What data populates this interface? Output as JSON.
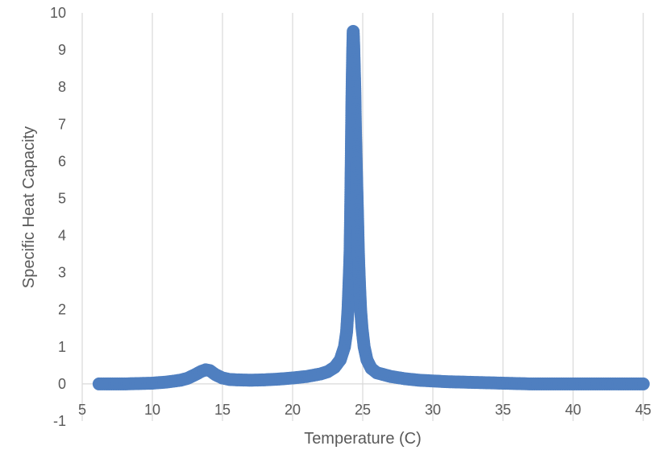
{
  "chart_data": {
    "type": "scatter",
    "title": "",
    "xlabel": "Temperature (C)",
    "ylabel": "Specific Heat Capacity",
    "xlim": [
      5,
      45
    ],
    "ylim": [
      -1,
      10
    ],
    "x_ticks": [
      5,
      10,
      15,
      20,
      25,
      30,
      35,
      40,
      45
    ],
    "y_ticks": [
      -1,
      0,
      1,
      2,
      3,
      4,
      5,
      6,
      7,
      8,
      9,
      10
    ],
    "grid": "vertical",
    "legend": "none",
    "marker_color": "#4f7fc0",
    "series": [
      {
        "points": [
          [
            6.2,
            0.0
          ],
          [
            7.0,
            0.0
          ],
          [
            8.0,
            0.0
          ],
          [
            9.0,
            0.01
          ],
          [
            10.0,
            0.02
          ],
          [
            11.0,
            0.05
          ],
          [
            12.0,
            0.1
          ],
          [
            12.5,
            0.15
          ],
          [
            13.0,
            0.24
          ],
          [
            13.5,
            0.34
          ],
          [
            13.8,
            0.38
          ],
          [
            14.1,
            0.36
          ],
          [
            14.5,
            0.25
          ],
          [
            15.0,
            0.16
          ],
          [
            15.5,
            0.12
          ],
          [
            16.0,
            0.11
          ],
          [
            17.0,
            0.1
          ],
          [
            18.0,
            0.11
          ],
          [
            19.0,
            0.13
          ],
          [
            20.0,
            0.16
          ],
          [
            21.0,
            0.2
          ],
          [
            22.0,
            0.27
          ],
          [
            22.5,
            0.33
          ],
          [
            23.0,
            0.45
          ],
          [
            23.4,
            0.65
          ],
          [
            23.7,
            1.0
          ],
          [
            23.85,
            1.4
          ],
          [
            23.95,
            2.0
          ],
          [
            24.02,
            2.7
          ],
          [
            24.06,
            3.1
          ],
          [
            24.1,
            3.6
          ],
          [
            24.12,
            4.1
          ],
          [
            24.14,
            4.65
          ],
          [
            24.16,
            5.3
          ],
          [
            24.18,
            5.9
          ],
          [
            24.2,
            6.6
          ],
          [
            24.22,
            7.3
          ],
          [
            24.24,
            7.9
          ],
          [
            24.26,
            8.4
          ],
          [
            24.28,
            8.85
          ],
          [
            24.3,
            9.2
          ],
          [
            24.32,
            9.5
          ],
          [
            24.36,
            9.1
          ],
          [
            24.4,
            8.5
          ],
          [
            24.44,
            7.9
          ],
          [
            24.48,
            6.9
          ],
          [
            24.52,
            6.2
          ],
          [
            24.56,
            5.6
          ],
          [
            24.6,
            5.0
          ],
          [
            24.64,
            4.4
          ],
          [
            24.68,
            3.7
          ],
          [
            24.72,
            3.2
          ],
          [
            24.78,
            2.6
          ],
          [
            24.85,
            2.0
          ],
          [
            24.95,
            1.5
          ],
          [
            25.1,
            1.0
          ],
          [
            25.3,
            0.65
          ],
          [
            25.6,
            0.42
          ],
          [
            26.0,
            0.3
          ],
          [
            27.0,
            0.2
          ],
          [
            28.0,
            0.14
          ],
          [
            29.0,
            0.1
          ],
          [
            30.0,
            0.08
          ],
          [
            31.0,
            0.06
          ],
          [
            32.0,
            0.05
          ],
          [
            33.0,
            0.04
          ],
          [
            34.0,
            0.03
          ],
          [
            35.0,
            0.02
          ],
          [
            36.0,
            0.01
          ],
          [
            37.0,
            0.0
          ],
          [
            38.0,
            0.0
          ],
          [
            39.0,
            0.0
          ],
          [
            40.0,
            0.0
          ],
          [
            41.0,
            0.0
          ],
          [
            42.0,
            0.0
          ],
          [
            43.0,
            0.0
          ],
          [
            44.0,
            0.0
          ],
          [
            45.0,
            0.0
          ]
        ]
      }
    ]
  }
}
